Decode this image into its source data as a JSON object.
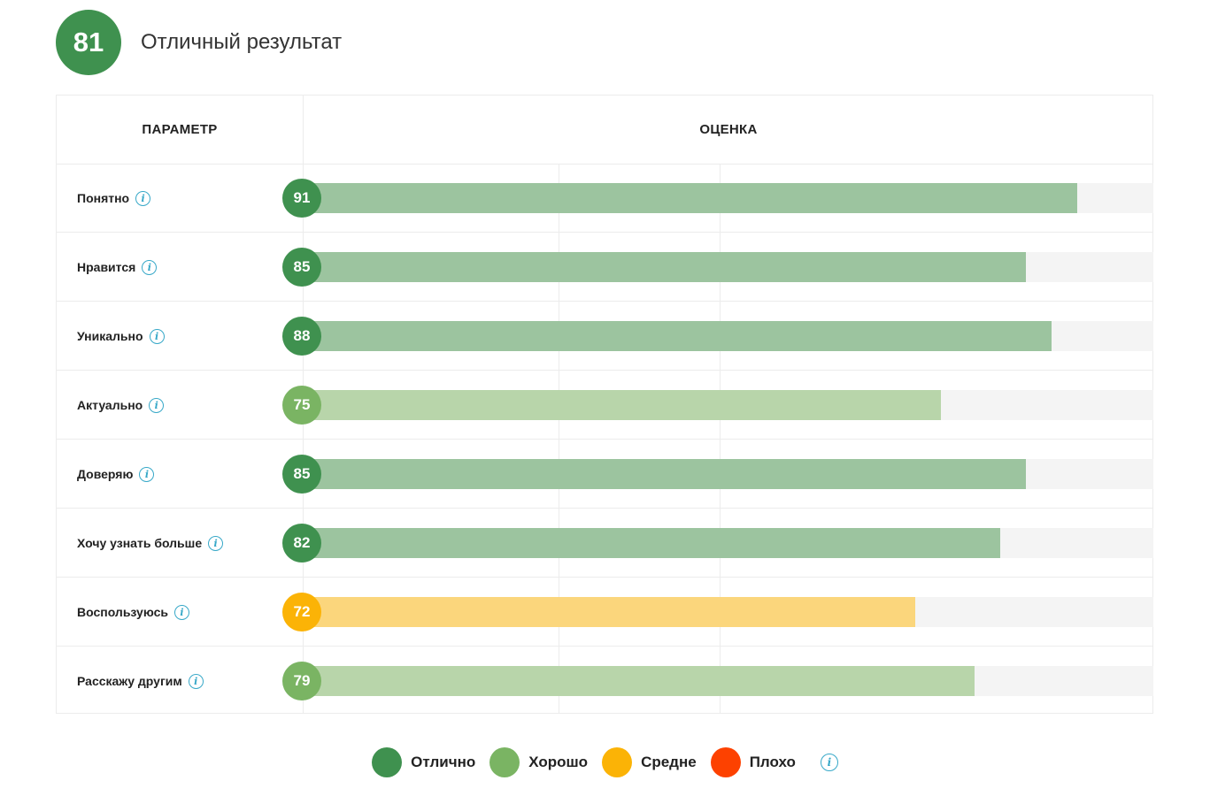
{
  "summary": {
    "score": "81",
    "label": "Отличный результат",
    "color": "#3f914f"
  },
  "table": {
    "param_header": "ПАРАМЕТР",
    "score_header": "ОЦЕНКА"
  },
  "chart_data": {
    "type": "bar",
    "orientation": "horizontal",
    "categories": [
      "Понятно",
      "Нравится",
      "Уникально",
      "Актуально",
      "Доверяю",
      "Хочу узнать больше",
      "Воспользуюсь",
      "Расскажу другим"
    ],
    "values": [
      91,
      85,
      88,
      75,
      85,
      82,
      72,
      79
    ],
    "ratings": [
      "excellent",
      "excellent",
      "excellent",
      "good",
      "excellent",
      "excellent",
      "average",
      "good"
    ],
    "xlim": [
      0,
      100
    ],
    "gridlines": [
      30,
      49
    ],
    "title": "",
    "xlabel": "",
    "ylabel": ""
  },
  "rating_colors": {
    "excellent": {
      "badge": "#3f914f",
      "bar": "#9cc49f"
    },
    "good": {
      "badge": "#7ab463",
      "bar": "#b8d5aa"
    },
    "average": {
      "badge": "#fbb306",
      "bar": "#fbd67c"
    },
    "bad": {
      "badge": "#fd4100",
      "bar": "#fd9a77"
    }
  },
  "legend": {
    "items": [
      {
        "label": "Отлично",
        "color": "#3f914f"
      },
      {
        "label": "Хорошо",
        "color": "#7ab463"
      },
      {
        "label": "Средне",
        "color": "#fbb306"
      },
      {
        "label": "Плохо",
        "color": "#fd4100"
      }
    ],
    "info_icon": "info-icon"
  }
}
